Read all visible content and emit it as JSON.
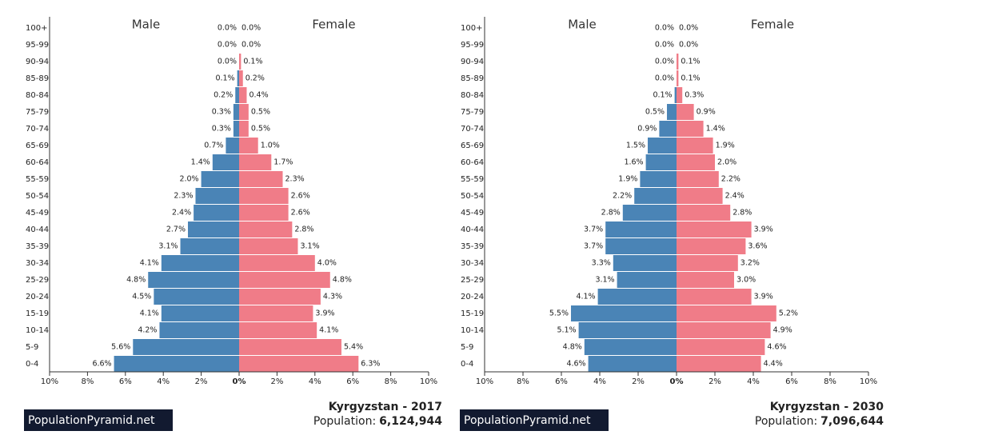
{
  "chart_data": [
    {
      "type": "pyramid",
      "title": "Kyrgyzstan - 2017",
      "population_label": "Population:",
      "population": "6,124,944",
      "brand": "PopulationPyramid.net",
      "categories": [
        "100+",
        "95-99",
        "90-94",
        "85-89",
        "80-84",
        "75-79",
        "70-74",
        "65-69",
        "60-64",
        "55-59",
        "50-54",
        "45-49",
        "40-44",
        "35-39",
        "30-34",
        "25-29",
        "20-24",
        "15-19",
        "10-14",
        "5-9",
        "0-4"
      ],
      "series": [
        {
          "name": "Male",
          "color": "#4a84b6",
          "side": "left",
          "values": [
            0.0,
            0.0,
            0.0,
            0.1,
            0.2,
            0.3,
            0.3,
            0.7,
            1.4,
            2.0,
            2.3,
            2.4,
            2.7,
            3.1,
            4.1,
            4.8,
            4.5,
            4.1,
            4.2,
            5.6,
            6.6
          ],
          "value_labels": [
            "0.0%",
            "0.0%",
            "0.0%",
            "0.1%",
            "0.2%",
            "0.3%",
            "0.3%",
            "0.7%",
            "1.4%",
            "2.0%",
            "2.3%",
            "2.4%",
            "2.7%",
            "3.1%",
            "4.1%",
            "4.8%",
            "4.5%",
            "4.1%",
            "4.2%",
            "5.6%",
            "6.6%"
          ]
        },
        {
          "name": "Female",
          "color": "#f07c88",
          "side": "right",
          "values": [
            0.0,
            0.0,
            0.1,
            0.2,
            0.4,
            0.5,
            0.5,
            1.0,
            1.7,
            2.3,
            2.6,
            2.6,
            2.8,
            3.1,
            4.0,
            4.8,
            4.3,
            3.9,
            4.1,
            5.4,
            6.3
          ],
          "value_labels": [
            "0.0%",
            "0.0%",
            "0.1%",
            "0.2%",
            "0.4%",
            "0.5%",
            "0.5%",
            "1.0%",
            "1.7%",
            "2.3%",
            "2.6%",
            "2.6%",
            "2.8%",
            "3.1%",
            "4.0%",
            "4.8%",
            "4.3%",
            "3.9%",
            "4.1%",
            "5.4%",
            "6.3%"
          ]
        }
      ],
      "xlim": [
        -10,
        10
      ],
      "xticks": [
        {
          "value": -10,
          "label": "10%"
        },
        {
          "value": -8,
          "label": "8%"
        },
        {
          "value": -6,
          "label": "6%"
        },
        {
          "value": -4,
          "label": "4%"
        },
        {
          "value": -2,
          "label": "2%"
        },
        {
          "value": 0,
          "label": "0%"
        },
        {
          "value": 2,
          "label": "2%"
        },
        {
          "value": 4,
          "label": "4%"
        },
        {
          "value": 6,
          "label": "6%"
        },
        {
          "value": 8,
          "label": "8%"
        },
        {
          "value": 10,
          "label": "10%"
        }
      ]
    },
    {
      "type": "pyramid",
      "title": "Kyrgyzstan - 2030",
      "population_label": "Population:",
      "population": "7,096,644",
      "brand": "PopulationPyramid.net",
      "categories": [
        "100+",
        "95-99",
        "90-94",
        "85-89",
        "80-84",
        "75-79",
        "70-74",
        "65-69",
        "60-64",
        "55-59",
        "50-54",
        "45-49",
        "40-44",
        "35-39",
        "30-34",
        "25-29",
        "20-24",
        "15-19",
        "10-14",
        "5-9",
        "0-4"
      ],
      "series": [
        {
          "name": "Male",
          "color": "#4a84b6",
          "side": "left",
          "values": [
            0.0,
            0.0,
            0.0,
            0.0,
            0.1,
            0.5,
            0.9,
            1.5,
            1.6,
            1.9,
            2.2,
            2.8,
            3.7,
            3.7,
            3.3,
            3.1,
            4.1,
            5.5,
            5.1,
            4.8,
            4.6
          ],
          "value_labels": [
            "0.0%",
            "0.0%",
            "0.0%",
            "0.0%",
            "0.1%",
            "0.5%",
            "0.9%",
            "1.5%",
            "1.6%",
            "1.9%",
            "2.2%",
            "2.8%",
            "3.7%",
            "3.7%",
            "3.3%",
            "3.1%",
            "4.1%",
            "5.5%",
            "5.1%",
            "4.8%",
            "4.6%"
          ]
        },
        {
          "name": "Female",
          "color": "#f07c88",
          "side": "right",
          "values": [
            0.0,
            0.0,
            0.1,
            0.1,
            0.3,
            0.9,
            1.4,
            1.9,
            2.0,
            2.2,
            2.4,
            2.8,
            3.9,
            3.6,
            3.2,
            3.0,
            3.9,
            5.2,
            4.9,
            4.6,
            4.4
          ],
          "value_labels": [
            "0.0%",
            "0.0%",
            "0.1%",
            "0.1%",
            "0.3%",
            "0.9%",
            "1.4%",
            "1.9%",
            "2.0%",
            "2.2%",
            "2.4%",
            "2.8%",
            "3.9%",
            "3.6%",
            "3.2%",
            "3.0%",
            "3.9%",
            "5.2%",
            "4.9%",
            "4.6%",
            "4.4%"
          ]
        }
      ],
      "xlim": [
        -10,
        10
      ],
      "xticks": [
        {
          "value": -10,
          "label": "10%"
        },
        {
          "value": -8,
          "label": "8%"
        },
        {
          "value": -6,
          "label": "6%"
        },
        {
          "value": -4,
          "label": "4%"
        },
        {
          "value": -2,
          "label": "2%"
        },
        {
          "value": 0,
          "label": "0%"
        },
        {
          "value": 2,
          "label": "2%"
        },
        {
          "value": 4,
          "label": "4%"
        },
        {
          "value": 6,
          "label": "6%"
        },
        {
          "value": 8,
          "label": "8%"
        },
        {
          "value": 10,
          "label": "10%"
        }
      ]
    }
  ]
}
